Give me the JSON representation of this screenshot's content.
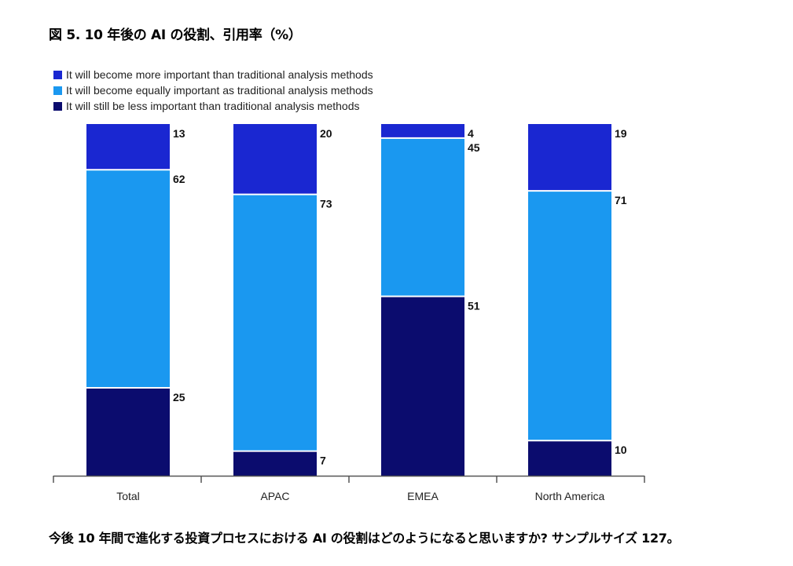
{
  "title": "図 5. 10 年後の AI の役割、引用率（%）",
  "caption": "今後 10 年間で進化する投資プロセスにおける AI の役割はどのようになると思いますか? サンプルサイズ 127。",
  "chart_data": {
    "type": "bar",
    "stacked": true,
    "percent": true,
    "categories": [
      "Total",
      "APAC",
      "EMEA",
      "North America"
    ],
    "series": [
      {
        "name": "It will become more important than traditional analysis methods",
        "color": "#1a27d1",
        "values": [
          13,
          20,
          4,
          19
        ]
      },
      {
        "name": "It will become equally important as traditional analysis methods",
        "color": "#1a98f0",
        "values": [
          62,
          73,
          45,
          71
        ]
      },
      {
        "name": "It will still be less important than traditional analysis methods",
        "color": "#0b0c6e",
        "values": [
          25,
          7,
          51,
          10
        ]
      }
    ],
    "ylim": [
      0,
      100
    ],
    "legend_position": "top-left"
  }
}
